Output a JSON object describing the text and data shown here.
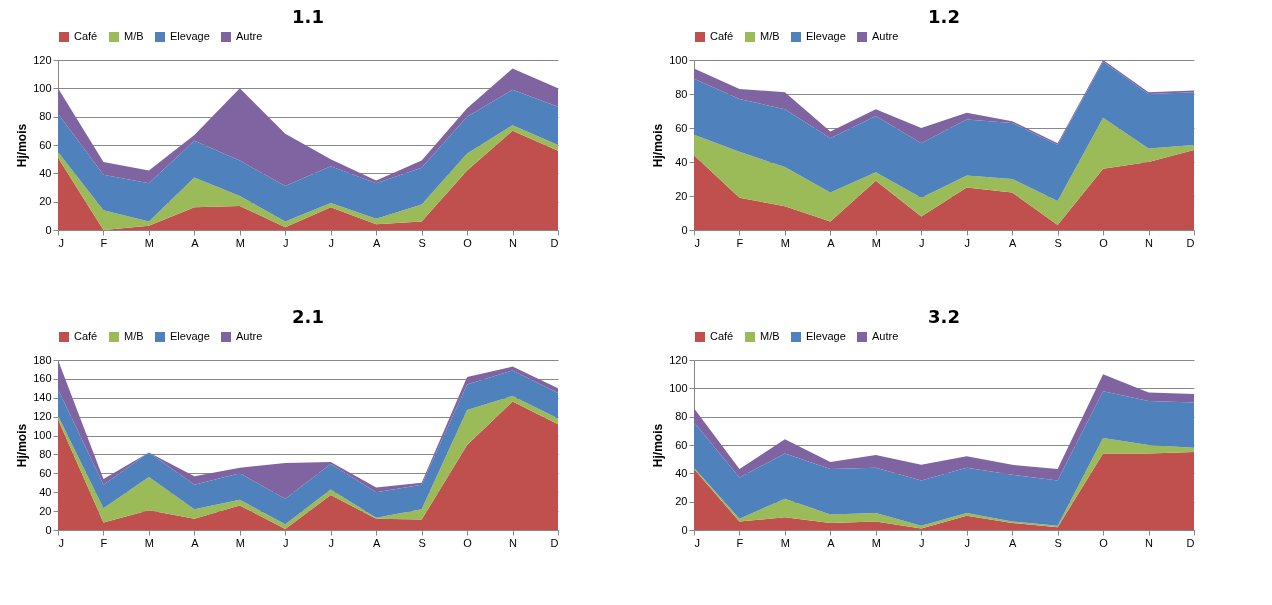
{
  "chart_data": [
    {
      "type": "area",
      "title": "1.1",
      "ylabel": "Hj/mois",
      "categories": [
        "J",
        "F",
        "M",
        "A",
        "M",
        "J",
        "J",
        "A",
        "S",
        "O",
        "N",
        "D"
      ],
      "stacked": true,
      "ylim": [
        0,
        120
      ],
      "yticks": [
        0,
        20,
        40,
        60,
        80,
        100,
        120
      ],
      "grid": "y",
      "legend": "top",
      "series": [
        {
          "name": "Café",
          "color": "#c0504d",
          "values": [
            51,
            0,
            3,
            16,
            17,
            2,
            16,
            4,
            6,
            42,
            70,
            56
          ]
        },
        {
          "name": "M/B",
          "color": "#9bbb59",
          "values": [
            4,
            14,
            3,
            21,
            7,
            4,
            3,
            4,
            12,
            12,
            4,
            4
          ]
        },
        {
          "name": "Elevage",
          "color": "#4f81bd",
          "values": [
            27,
            25,
            27,
            26,
            25,
            25,
            26,
            25,
            26,
            26,
            25,
            27
          ]
        },
        {
          "name": "Autre",
          "color": "#8064a2",
          "values": [
            18,
            9,
            9,
            4,
            51,
            37,
            5,
            2,
            5,
            6,
            15,
            13
          ]
        }
      ]
    },
    {
      "type": "area",
      "title": "1.2",
      "ylabel": "Hj/mois",
      "categories": [
        "J",
        "F",
        "M",
        "A",
        "M",
        "J",
        "J",
        "A",
        "S",
        "O",
        "N",
        "D"
      ],
      "stacked": true,
      "ylim": [
        0,
        100
      ],
      "yticks": [
        0,
        20,
        40,
        60,
        80,
        100
      ],
      "grid": "y",
      "legend": "top",
      "series": [
        {
          "name": "Café",
          "color": "#c0504d",
          "values": [
            44,
            19,
            14,
            5,
            29,
            8,
            25,
            22,
            3,
            36,
            40,
            47
          ]
        },
        {
          "name": "M/B",
          "color": "#9bbb59",
          "values": [
            12,
            27,
            23,
            17,
            5,
            11,
            7,
            8,
            14,
            30,
            8,
            3
          ]
        },
        {
          "name": "Elevage",
          "color": "#4f81bd",
          "values": [
            33,
            31,
            34,
            32,
            33,
            32,
            33,
            33,
            33,
            33,
            32,
            31
          ]
        },
        {
          "name": "Autre",
          "color": "#8064a2",
          "values": [
            6,
            6,
            10,
            4,
            4,
            9,
            4,
            1,
            1,
            1,
            1,
            1
          ]
        }
      ]
    },
    {
      "type": "area",
      "title": "2.1",
      "ylabel": "Hj/mois",
      "categories": [
        "J",
        "F",
        "M",
        "A",
        "M",
        "J",
        "J",
        "A",
        "S",
        "O",
        "N",
        "D"
      ],
      "stacked": true,
      "ylim": [
        0,
        180
      ],
      "yticks": [
        0,
        20,
        40,
        60,
        80,
        100,
        120,
        140,
        160,
        180
      ],
      "grid": "y",
      "legend": "top",
      "series": [
        {
          "name": "Café",
          "color": "#c0504d",
          "values": [
            117,
            8,
            21,
            12,
            26,
            1,
            37,
            12,
            11,
            90,
            136,
            112
          ]
        },
        {
          "name": "M/B",
          "color": "#9bbb59",
          "values": [
            4,
            15,
            35,
            10,
            6,
            5,
            6,
            1,
            11,
            37,
            6,
            6
          ]
        },
        {
          "name": "Elevage",
          "color": "#4f81bd",
          "values": [
            28,
            25,
            26,
            26,
            28,
            27,
            27,
            27,
            26,
            27,
            27,
            27
          ]
        },
        {
          "name": "Autre",
          "color": "#8064a2",
          "values": [
            31,
            6,
            0,
            9,
            6,
            38,
            2,
            5,
            2,
            8,
            4,
            5
          ]
        }
      ]
    },
    {
      "type": "area",
      "title": "3.2",
      "ylabel": "Hj/mois",
      "categories": [
        "J",
        "F",
        "M",
        "A",
        "M",
        "J",
        "J",
        "A",
        "S",
        "O",
        "N",
        "D"
      ],
      "stacked": true,
      "ylim": [
        0,
        120
      ],
      "yticks": [
        0,
        20,
        40,
        60,
        80,
        100,
        120
      ],
      "grid": "y",
      "legend": "top",
      "series": [
        {
          "name": "Café",
          "color": "#c0504d",
          "values": [
            43,
            6,
            9,
            5,
            6,
            1,
            10,
            5,
            2,
            54,
            54,
            55
          ]
        },
        {
          "name": "M/B",
          "color": "#9bbb59",
          "values": [
            1,
            2,
            13,
            6,
            6,
            2,
            2,
            1,
            1,
            11,
            6,
            3
          ]
        },
        {
          "name": "Elevage",
          "color": "#4f81bd",
          "values": [
            32,
            29,
            32,
            32,
            32,
            32,
            32,
            33,
            32,
            33,
            31,
            32
          ]
        },
        {
          "name": "Autre",
          "color": "#8064a2",
          "values": [
            10,
            6,
            10,
            5,
            9,
            11,
            8,
            7,
            8,
            12,
            6,
            6
          ]
        }
      ]
    }
  ]
}
